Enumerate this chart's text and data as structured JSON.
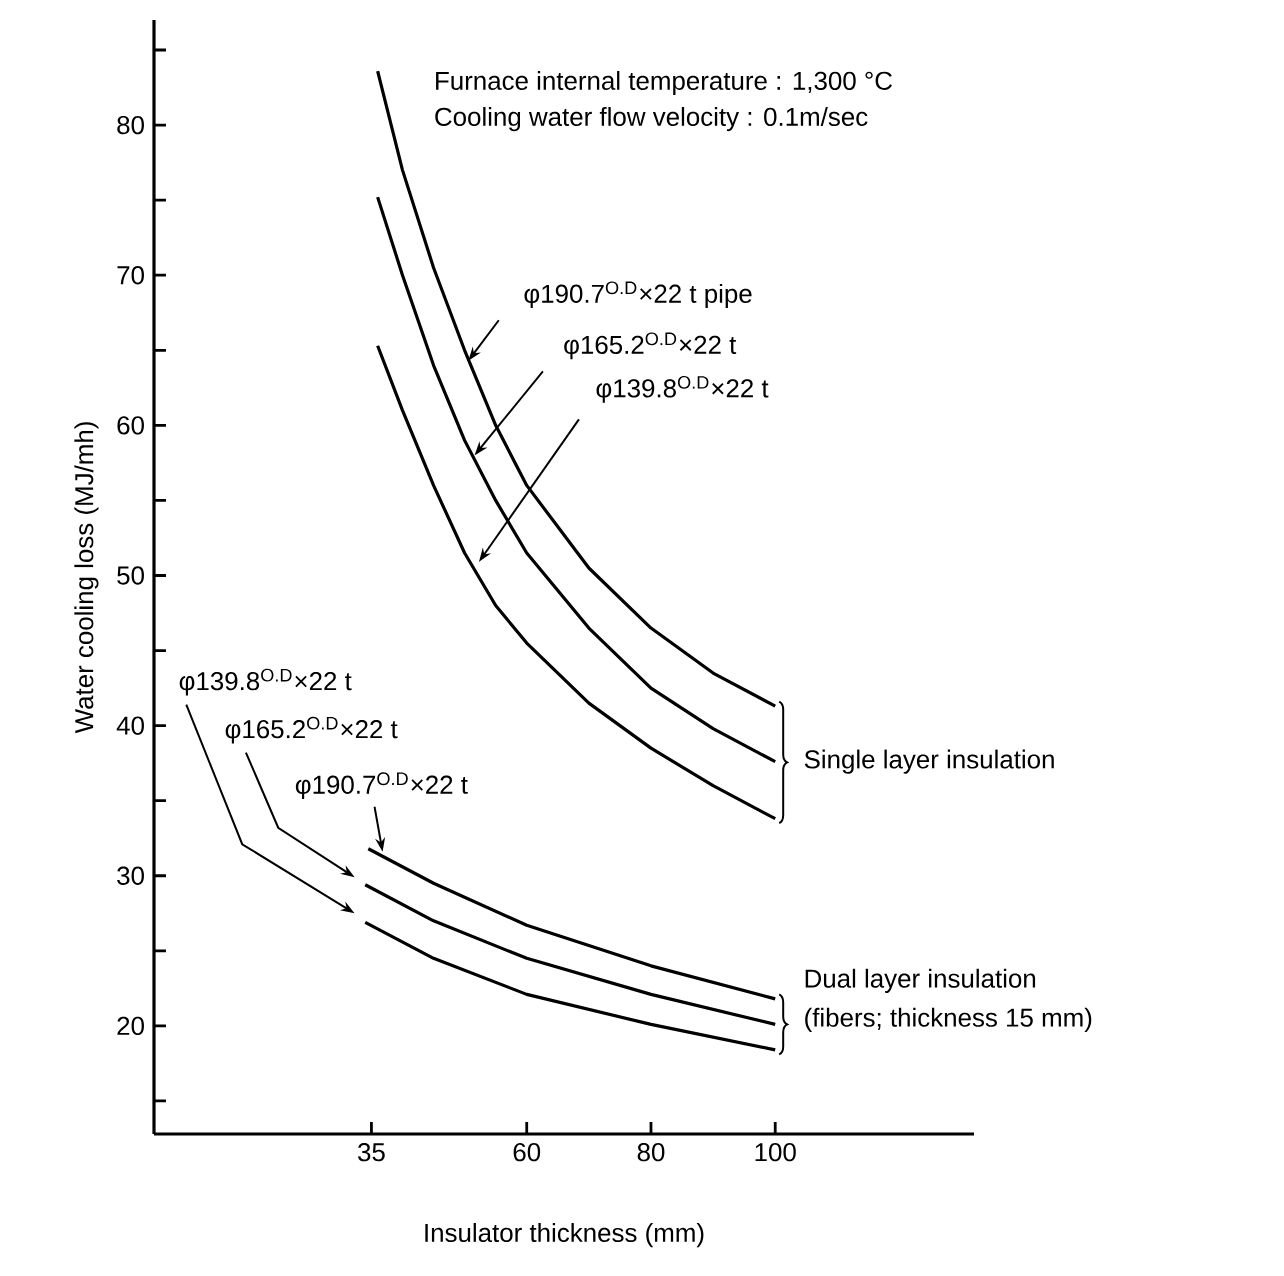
{
  "chart_data": {
    "type": "line",
    "xlabel": "Insulator thickness (mm)",
    "ylabel": "Water cooling loss (MJ/mh)",
    "xlim": [
      0,
      132
    ],
    "ylim": [
      12.8,
      87
    ],
    "xticks": [
      35,
      60,
      80,
      100
    ],
    "yticks": [
      {
        "value": 15,
        "label": null
      },
      20,
      {
        "value": 25,
        "label": null
      },
      30,
      {
        "value": 35,
        "label": null
      },
      40,
      {
        "value": 45,
        "label": null
      },
      50,
      {
        "value": 55,
        "label": null
      },
      60,
      {
        "value": 65,
        "label": null
      },
      70,
      {
        "value": 75,
        "label": null
      },
      80,
      {
        "value": 85,
        "label": null
      }
    ],
    "series": [
      {
        "color": "#000000",
        "x": [
          36,
          40,
          45,
          50,
          55,
          60,
          70,
          80,
          90,
          100
        ],
        "values": [
          83.6,
          77,
          70.5,
          65,
          60,
          56,
          50.5,
          46.5,
          43.5,
          41.3
        ]
      },
      {
        "color": "#000000",
        "x": [
          36,
          40,
          45,
          50,
          55,
          60,
          70,
          80,
          90,
          100
        ],
        "values": [
          75.2,
          70,
          64,
          59,
          55,
          51.5,
          46.5,
          42.5,
          39.8,
          37.6
        ]
      },
      {
        "color": "#000000",
        "x": [
          36,
          40,
          45,
          50,
          55,
          60,
          70,
          80,
          90,
          100
        ],
        "values": [
          65.3,
          61,
          56,
          51.5,
          48,
          45.5,
          41.5,
          38.5,
          36,
          33.8
        ]
      },
      {
        "color": "#000000",
        "x": [
          34.5,
          45,
          60,
          80,
          100
        ],
        "values": [
          31.8,
          29.5,
          26.7,
          24,
          21.8
        ]
      },
      {
        "color": "#000000",
        "x": [
          34,
          45,
          60,
          80,
          100
        ],
        "values": [
          29.4,
          27,
          24.5,
          22.1,
          20.1
        ]
      },
      {
        "color": "#000000",
        "x": [
          34,
          45,
          60,
          80,
          100
        ],
        "values": [
          26.9,
          24.5,
          22.1,
          20.1,
          18.4
        ]
      }
    ],
    "annotations": [
      "Furnace internal temperature : 1,300 °C",
      "Cooling water flow velocity : 0.1m/sec",
      {
        "text": "φ190.7$^{O.D}$×22 t pipe",
        "x": 50.6,
        "y": 64.3
      },
      {
        "text": "φ165.2$^{O.D}$×22 t",
        "x": 51.6,
        "y": 58
      },
      {
        "text": "φ139.8$^{O.D}$×22 t",
        "x": 52.3,
        "y": 50.9
      },
      {
        "text": "Single layer insulation",
        "x": 100,
        "y": 37.6
      },
      {
        "text": "Dual layer insulation",
        "x": 100,
        "y": 20.1
      },
      "(fibers; thickness 15 mm)",
      "φ139.8$^{O.D}$×22 t",
      "φ165.2$^{O.D}$×22 t",
      {
        "text": "φ190.7$^{O.D}$×22 t",
        "x": 36.8,
        "y": 31.6
      }
    ]
  }
}
